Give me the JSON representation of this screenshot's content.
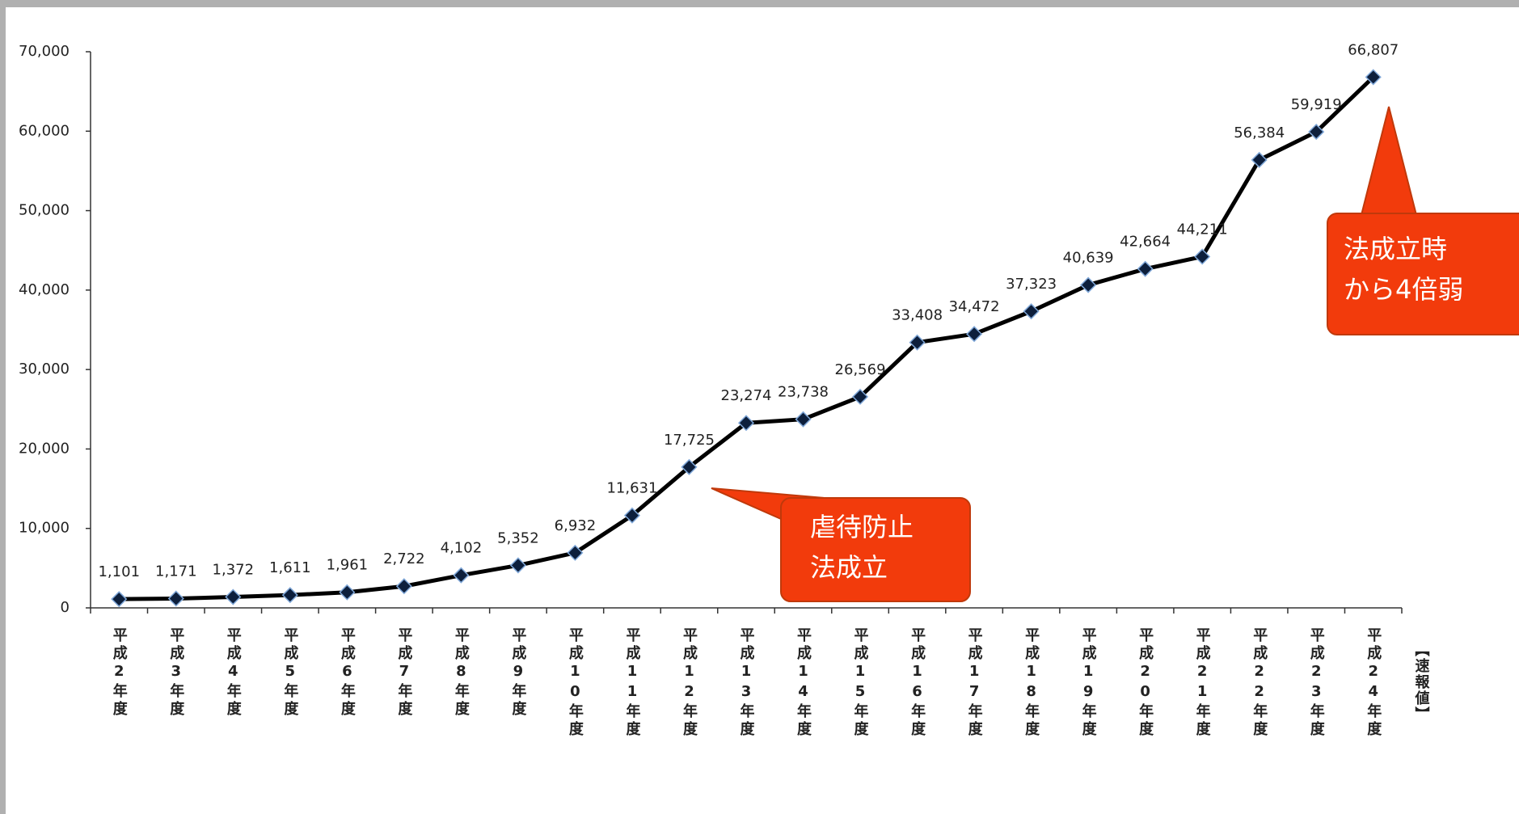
{
  "chart_data": {
    "type": "line",
    "categories": [
      "平成2年度",
      "平成3年度",
      "平成4年度",
      "平成5年度",
      "平成6年度",
      "平成7年度",
      "平成8年度",
      "平成9年度",
      "平成10年度",
      "平成11年度",
      "平成12年度",
      "平成13年度",
      "平成14年度",
      "平成15年度",
      "平成16年度",
      "平成17年度",
      "平成18年度",
      "平成19年度",
      "平成20年度",
      "平成21年度",
      "平成22年度",
      "平成23年度",
      "平成24年度"
    ],
    "values": [
      1101,
      1171,
      1372,
      1611,
      1961,
      2722,
      4102,
      5352,
      6932,
      11631,
      17725,
      23274,
      23738,
      26569,
      33408,
      34472,
      37323,
      40639,
      42664,
      44211,
      56384,
      59919,
      66807
    ],
    "value_labels": [
      "1,101",
      "1,171",
      "1,372",
      "1,611",
      "1,961",
      "2,722",
      "4,102",
      "5,352",
      "6,932",
      "11,631",
      "17,725",
      "23,274",
      "23,738",
      "26,569",
      "33,408",
      "34,472",
      "37,323",
      "40,639",
      "42,664",
      "44,211",
      "56,384",
      "59,919",
      "66,807"
    ],
    "color": "#000000",
    "marker_color": "#0d1f3c",
    "ylim": [
      0,
      70000
    ],
    "yticks": [
      0,
      {
        "value": 10000,
        "label": "10,000"
      },
      {
        "value": 20000,
        "label": "20,000"
      },
      {
        "value": 30000,
        "label": "30,000"
      },
      {
        "value": 40000,
        "label": "40,000"
      },
      {
        "value": 50000,
        "label": "50,000"
      },
      {
        "value": 60000,
        "label": "60,000"
      },
      {
        "value": 70000,
        "label": "70,000"
      }
    ],
    "grid": false,
    "note": "【速報値】",
    "annotations": [
      {
        "lines": [
          "虐待防止",
          "法成立"
        ]
      },
      {
        "lines": [
          "法成立時",
          "から4倍弱"
        ]
      }
    ]
  }
}
